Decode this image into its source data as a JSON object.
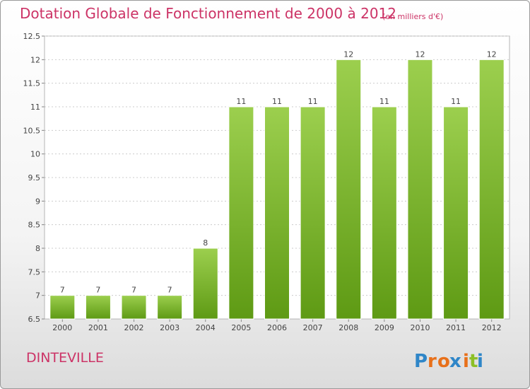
{
  "title": "Dotation Globale de Fonctionnement de 2000 à 2012",
  "subtitle": "(en milliers d'€)",
  "commune": "DINTEVILLE",
  "logo": {
    "text": "Proxiti",
    "letters": [
      "P",
      "r",
      "o",
      "x",
      "i",
      "t",
      "i"
    ],
    "colors": [
      "#2f86c8",
      "#e8701a",
      "#e8701a",
      "#2f86c8",
      "#e8701a",
      "#8cbf26",
      "#2f86c8"
    ]
  },
  "colors": {
    "bar_top": "#9ccf4e",
    "bar_bottom": "#5e9a14",
    "title": "#cc3366",
    "grid": "#cccccc"
  },
  "chart_data": {
    "type": "bar",
    "categories": [
      "2000",
      "2001",
      "2002",
      "2003",
      "2004",
      "2005",
      "2006",
      "2007",
      "2008",
      "2009",
      "2010",
      "2011",
      "2012"
    ],
    "values": [
      7,
      7,
      7,
      7,
      8,
      11,
      11,
      11,
      12,
      11,
      12,
      11,
      12
    ],
    "title": "Dotation Globale de Fonctionnement de 2000 à 2012",
    "subtitle": "(en milliers d'€)",
    "xlabel": "",
    "ylabel": "",
    "ylim": [
      6.5,
      12.5
    ],
    "yticks": [
      "6.5",
      "7",
      "7.5",
      "8",
      "8.5",
      "9",
      "9.5",
      "10",
      "10.5",
      "11",
      "11.5",
      "12",
      "12.5"
    ],
    "grid": true,
    "legend": "none"
  }
}
